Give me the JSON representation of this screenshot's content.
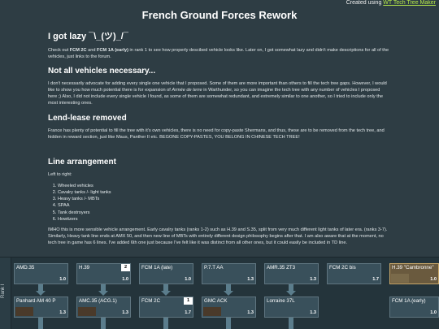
{
  "credit": {
    "prefix": "Created using ",
    "link": "WT Tech Tree Maker"
  },
  "title": "French Ground Forces Rework",
  "sections": {
    "lazy": {
      "heading": "I got lazy ¯\\_(ツ)_/¯",
      "text_1": "Check out ",
      "bold_1": "FCM 2C",
      "text_2": " and ",
      "bold_2": "FCM 1A (early)",
      "text_3": " in rank 1 to see how properly descibed vehicle looks like. Later on, I got somewhat lazy and didn't make descriptions for all of the vehicles, just links to the forum."
    },
    "not_all": {
      "heading": "Not all vehicles necessary...",
      "text_1": "I don't necessarily advocate for adding every single one vehicle that I proposed. Some of them are more important than others to fill the tech tree gaps. However, I would like to show you how much potential there is for expansion of ",
      "italic": "Armée de terre",
      "text_2": " in Warthunder, so you can imagine the tech tree with any number of vehicles I proposed here ;) Also, I did not include every single vehicle I found, as some of them are somewhat redundant, and extremely similar to one another, so I tried to include only the most interesting ones."
    },
    "lend": {
      "heading": "Lend-lease removed",
      "text": "France has plenty of potential to fill the tree with it's own vehicles, there is no need for copy-paste Shermans, and thus, these are to be removed from the tech tree, and hidden in reward section, just like Maus, Panther II etc. BEGONE COPY-PASTES, YOU BELONG IN CHINESE TECH TREE!"
    },
    "line": {
      "heading": "Line arrangement",
      "intro": "Left to right:",
      "items": [
        "Wheeled vehicles",
        "Cavalry tanks /- light tanks",
        "Heavy tanks /- MBTs",
        "SPAA",
        "Tank destroyers",
        "Howitzers"
      ],
      "imho": "IMHO this is more sensible vehicle arrangement.  Early cavalry tanks (ranks 1-2) such as H.39 and S.35, split from very much different light tanks of later era. (ranks 3-7). Similarly, Heavy tank line ends at AMX 50, and then new line of MBTs with entirely different design philosophy begins after that. I am also aware that at the moment, no tech tree in game has 6 lines. I've added 6th one just because I've felt like it was distinct from all other ones, but it could easily be included in TD line."
    }
  },
  "tree": {
    "rank_label": "Rank I",
    "row1": [
      {
        "name": "AMD.35",
        "br": "1.0",
        "flag": ""
      },
      {
        "name": "H.39",
        "br": "1.0",
        "flag": "2"
      },
      {
        "name": "FCM 1A (late)",
        "br": "1.0",
        "flag": ""
      },
      {
        "name": "P.7.T AA",
        "br": "1.3",
        "flag": ""
      },
      {
        "name": "AMR.35 ZT3",
        "br": "1.3",
        "flag": ""
      },
      {
        "name": "FCM 2C bis",
        "br": "1.7",
        "flag": ""
      },
      {
        "name": "H.39 \"Cambronne\"",
        "br": "1.0",
        "flag": ""
      }
    ],
    "row2": [
      {
        "name": "Panhard AM 40 P",
        "br": "1.3",
        "flag": ""
      },
      {
        "name": "AMC.35 (ACG.1)",
        "br": "1.3",
        "flag": ""
      },
      {
        "name": "FCM 2C",
        "br": "1.7",
        "flag": "1"
      },
      {
        "name": "GMC ACK",
        "br": "1.3",
        "flag": ""
      },
      {
        "name": "Lorraine 37L",
        "br": "1.3",
        "flag": ""
      },
      {
        "name": "",
        "br": "",
        "flag": ""
      },
      {
        "name": "FCM 1A (early)",
        "br": "1.0",
        "flag": ""
      }
    ]
  }
}
